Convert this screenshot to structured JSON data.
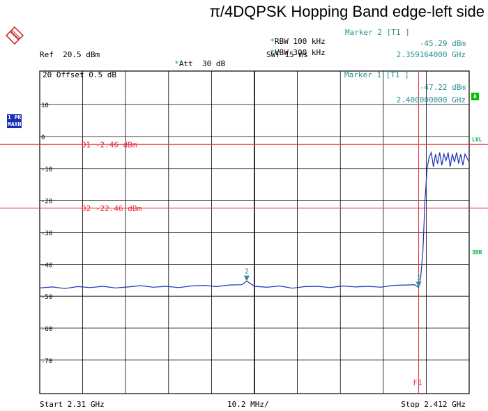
{
  "logo_text": "R&S",
  "header": {
    "rbw": "RBW 100 kHz",
    "vbw": "VBW 300 kHz",
    "swt": "SWT 15 ms",
    "ref": "Ref  20.5 dBm",
    "att": "Att  30 dB",
    "marker2_title": "Marker 2 [T1 ]",
    "marker2_level": "-45.29 dBm",
    "marker2_freq": "2.359164000 GHz",
    "marker1_title": "Marker 1 [T1 ]",
    "marker1_level": "-47.22 dBm",
    "marker1_freq": "2.400000000 GHz",
    "star": "*",
    "offset_row": "20  Offset  0.5 dB"
  },
  "side": {
    "trace_badge_1": "1 PK",
    "trace_badge_2": "MAXH",
    "badge_a": "A",
    "lvl": "LVL",
    "three_db": "3DB"
  },
  "footer": {
    "start": "Start 2.31 GHz",
    "span": "10.2 MHz/",
    "stop": "Stop 2.412 GHz"
  },
  "colors": {
    "trace": "#1b2fb5",
    "lines": "#e8303a",
    "grid": "#000000",
    "marker": "#2a8f8f",
    "accent_green": "#00c000"
  },
  "chart_data": {
    "type": "line",
    "title": "π/4DQPSK Hopping Band edge-left side",
    "xlabel": "",
    "ylabel": "",
    "xlim": [
      2.31,
      2.412
    ],
    "ylim": [
      -80.5,
      20.5
    ],
    "x_tick_div": "10.2 MHz/",
    "y_ticks": [
      10,
      0,
      -10,
      -20,
      -30,
      -40,
      -50,
      -60,
      -70
    ],
    "grid": true,
    "display_lines": [
      {
        "label": "D1",
        "text": "D1  -2.46 dBm",
        "value": -2.46
      },
      {
        "label": "D2",
        "text": "D2  -22.46 dBm",
        "value": -22.46
      }
    ],
    "frequency_line": {
      "label": "F1",
      "value": 2.4
    },
    "markers": [
      {
        "name": "1",
        "x": 2.4,
        "y": -47.22
      },
      {
        "name": "2",
        "x": 2.359164,
        "y": -45.29
      }
    ],
    "series": [
      {
        "values": [
          [
            2.31,
            -47.4
          ],
          [
            2.313,
            -47.1
          ],
          [
            2.316,
            -47.6
          ],
          [
            2.319,
            -47.0
          ],
          [
            2.322,
            -47.3
          ],
          [
            2.325,
            -46.9
          ],
          [
            2.328,
            -47.4
          ],
          [
            2.331,
            -47.1
          ],
          [
            2.334,
            -46.7
          ],
          [
            2.337,
            -47.2
          ],
          [
            2.34,
            -46.9
          ],
          [
            2.343,
            -47.3
          ],
          [
            2.346,
            -46.8
          ],
          [
            2.349,
            -46.6
          ],
          [
            2.352,
            -47.0
          ],
          [
            2.355,
            -46.5
          ],
          [
            2.358,
            -46.4
          ],
          [
            2.359164,
            -45.29
          ],
          [
            2.361,
            -46.9
          ],
          [
            2.364,
            -47.2
          ],
          [
            2.367,
            -46.8
          ],
          [
            2.37,
            -47.5
          ],
          [
            2.373,
            -47.0
          ],
          [
            2.376,
            -46.9
          ],
          [
            2.379,
            -47.3
          ],
          [
            2.382,
            -46.8
          ],
          [
            2.385,
            -47.1
          ],
          [
            2.388,
            -46.9
          ],
          [
            2.391,
            -47.2
          ],
          [
            2.394,
            -46.6
          ],
          [
            2.397,
            -46.5
          ],
          [
            2.399,
            -46.4
          ],
          [
            2.4,
            -47.22
          ],
          [
            2.4005,
            -44.0
          ],
          [
            2.401,
            -36.0
          ],
          [
            2.4015,
            -20.0
          ],
          [
            2.402,
            -10.0
          ],
          [
            2.4025,
            -6.5
          ],
          [
            2.403,
            -5.0
          ],
          [
            2.4035,
            -9.5
          ],
          [
            2.404,
            -5.5
          ],
          [
            2.4045,
            -8.5
          ],
          [
            2.405,
            -5.0
          ],
          [
            2.4055,
            -9.0
          ],
          [
            2.406,
            -5.5
          ],
          [
            2.4065,
            -7.5
          ],
          [
            2.407,
            -5.0
          ],
          [
            2.4075,
            -9.5
          ],
          [
            2.408,
            -5.5
          ],
          [
            2.4085,
            -8.0
          ],
          [
            2.409,
            -5.0
          ],
          [
            2.4095,
            -8.5
          ],
          [
            2.41,
            -5.5
          ],
          [
            2.4105,
            -9.0
          ],
          [
            2.411,
            -5.5
          ],
          [
            2.412,
            -8.0
          ]
        ]
      }
    ]
  }
}
